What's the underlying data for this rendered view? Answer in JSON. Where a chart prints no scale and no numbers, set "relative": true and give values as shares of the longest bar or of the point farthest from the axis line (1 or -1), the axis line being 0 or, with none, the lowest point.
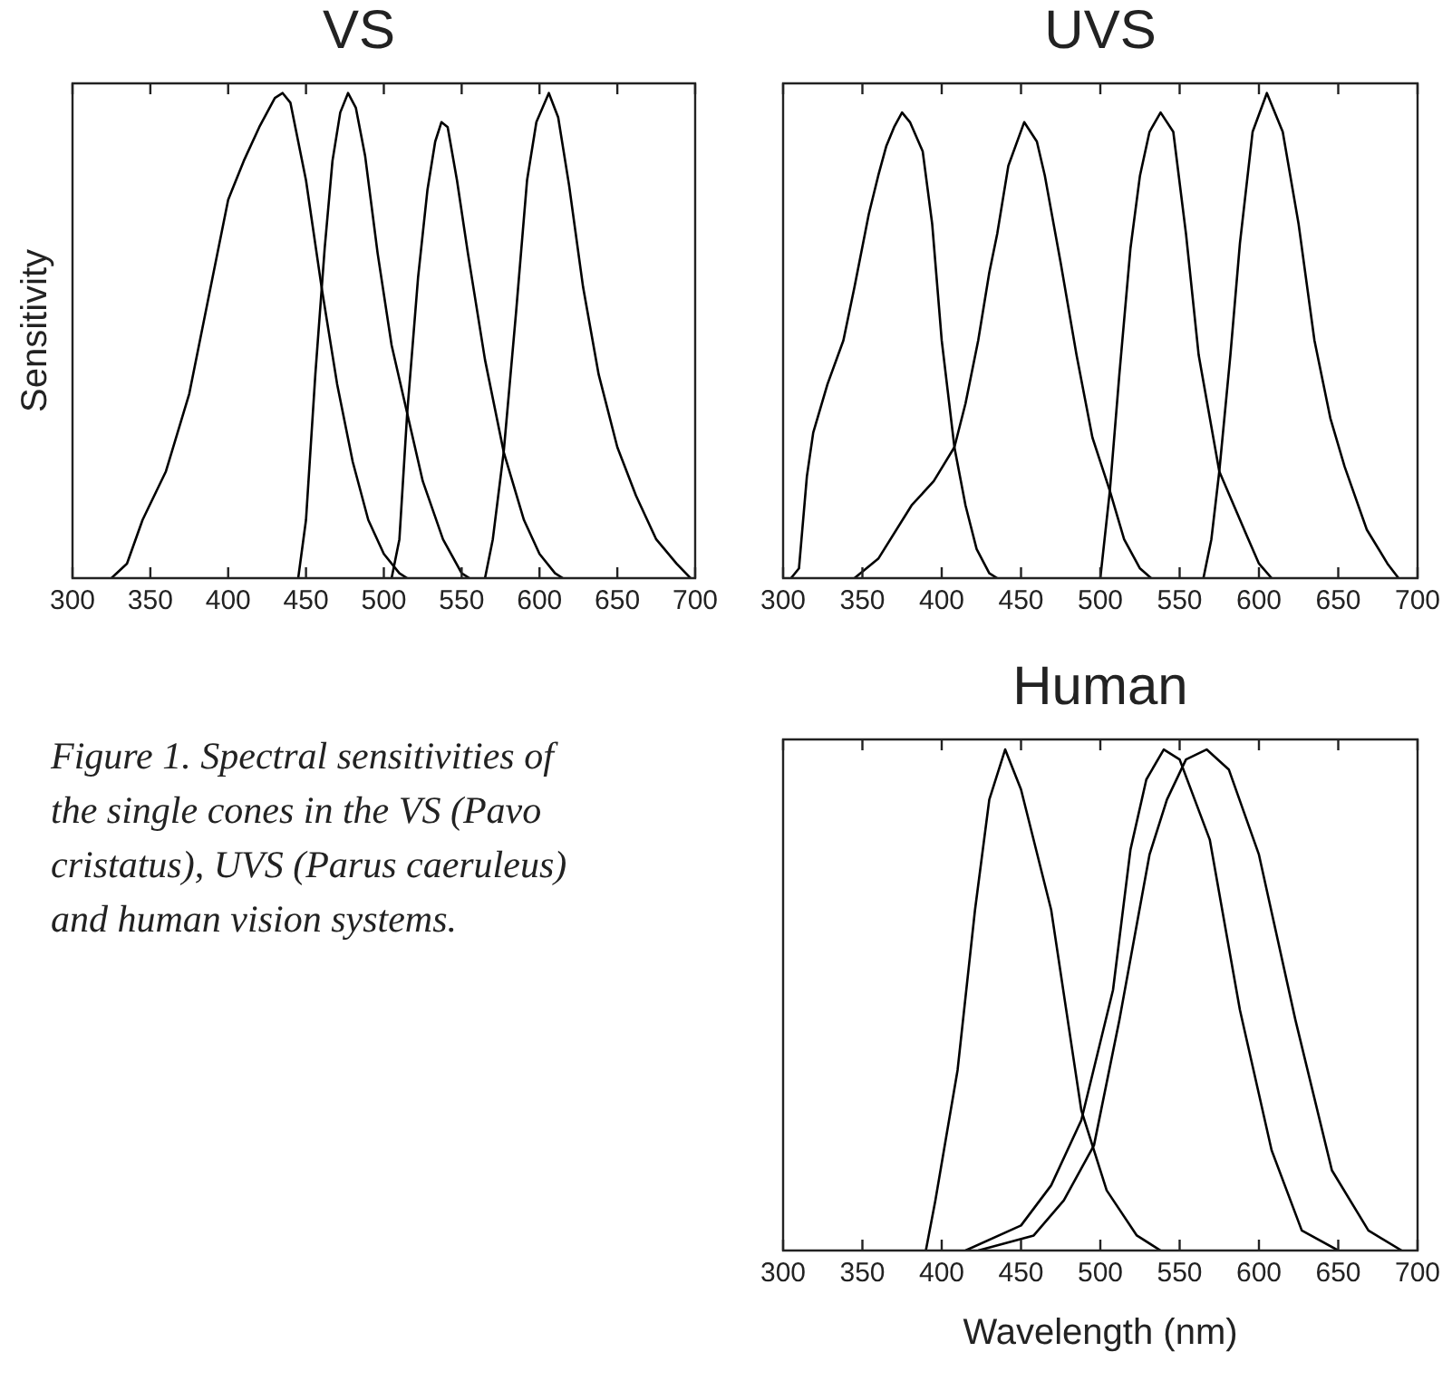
{
  "chart_data": [
    {
      "type": "line",
      "title": "VS",
      "ylabel": "Sensitivity",
      "relative": true,
      "xlim": [
        300,
        700
      ],
      "xticks": [
        300,
        350,
        400,
        450,
        500,
        550,
        600,
        650,
        700
      ],
      "tick_labels": "x",
      "marker": "none",
      "legend": false,
      "series": [
        {
          "color": "#000000",
          "x": [
            325,
            335,
            345,
            360,
            375,
            390,
            400,
            410,
            420,
            430,
            435,
            440,
            450,
            460,
            470,
            480,
            490,
            500,
            510,
            515
          ],
          "values": [
            0,
            0.03,
            0.12,
            0.22,
            0.38,
            0.62,
            0.78,
            0.86,
            0.93,
            0.99,
            1.0,
            0.98,
            0.82,
            0.6,
            0.4,
            0.24,
            0.12,
            0.05,
            0.01,
            0
          ]
        },
        {
          "color": "#000000",
          "x": [
            445,
            450,
            456,
            462,
            467,
            472,
            477,
            482,
            488,
            496,
            505,
            515,
            525,
            538,
            550,
            555
          ],
          "values": [
            0,
            0.12,
            0.42,
            0.68,
            0.86,
            0.96,
            1.0,
            0.97,
            0.87,
            0.67,
            0.48,
            0.34,
            0.2,
            0.08,
            0.01,
            0
          ]
        },
        {
          "color": "#000000",
          "x": [
            505,
            510,
            515,
            522,
            528,
            533,
            537,
            541,
            547,
            554,
            565,
            577,
            590,
            600,
            610,
            615
          ],
          "values": [
            0,
            0.08,
            0.34,
            0.62,
            0.8,
            0.9,
            0.94,
            0.93,
            0.82,
            0.67,
            0.45,
            0.26,
            0.12,
            0.05,
            0.01,
            0
          ]
        },
        {
          "color": "#000000",
          "x": [
            565,
            570,
            577,
            585,
            592,
            598,
            606,
            612,
            619,
            628,
            638,
            650,
            662,
            675,
            688,
            697
          ],
          "values": [
            0,
            0.08,
            0.26,
            0.55,
            0.82,
            0.94,
            1.0,
            0.95,
            0.81,
            0.6,
            0.42,
            0.27,
            0.17,
            0.08,
            0.03,
            0
          ]
        }
      ]
    },
    {
      "type": "line",
      "title": "UVS",
      "relative": true,
      "xlim": [
        300,
        700
      ],
      "xticks": [
        300,
        350,
        400,
        450,
        500,
        550,
        600,
        650,
        700
      ],
      "tick_labels": "x",
      "marker": "none",
      "legend": false,
      "series": [
        {
          "color": "#000000",
          "x": [
            305,
            310,
            315,
            319,
            328,
            338,
            345,
            354,
            360,
            365,
            370,
            375,
            380,
            388,
            394,
            400,
            408,
            415,
            422,
            430,
            435
          ],
          "values": [
            0,
            0.02,
            0.21,
            0.3,
            0.4,
            0.49,
            0.6,
            0.75,
            0.83,
            0.89,
            0.93,
            0.96,
            0.94,
            0.88,
            0.73,
            0.49,
            0.27,
            0.15,
            0.06,
            0.01,
            0
          ]
        },
        {
          "color": "#000000",
          "x": [
            345,
            360,
            381,
            395,
            408,
            415,
            423,
            430,
            435,
            442,
            452,
            460,
            465,
            475,
            485,
            495,
            506,
            515,
            525,
            532
          ],
          "values": [
            0,
            0.04,
            0.15,
            0.2,
            0.27,
            0.36,
            0.49,
            0.63,
            0.71,
            0.85,
            0.94,
            0.9,
            0.83,
            0.65,
            0.46,
            0.29,
            0.18,
            0.08,
            0.02,
            0
          ]
        },
        {
          "color": "#000000",
          "x": [
            500,
            506,
            512,
            519,
            525,
            531,
            538,
            546,
            554,
            562,
            575,
            592,
            600,
            608
          ],
          "values": [
            0,
            0.18,
            0.42,
            0.68,
            0.83,
            0.92,
            0.96,
            0.92,
            0.71,
            0.46,
            0.22,
            0.09,
            0.03,
            0
          ]
        },
        {
          "color": "#000000",
          "x": [
            565,
            570,
            575,
            582,
            588,
            596,
            605,
            615,
            625,
            635,
            645,
            654,
            668,
            681,
            688
          ],
          "values": [
            0,
            0.08,
            0.22,
            0.46,
            0.69,
            0.92,
            1.0,
            0.92,
            0.73,
            0.49,
            0.33,
            0.23,
            0.1,
            0.03,
            0
          ]
        }
      ]
    },
    {
      "type": "line",
      "title": "Human",
      "xlabel": "Wavelength (nm)",
      "relative": true,
      "xlim": [
        300,
        700
      ],
      "xticks": [
        300,
        350,
        400,
        450,
        500,
        550,
        600,
        650,
        700
      ],
      "tick_labels": "x",
      "marker": "none",
      "legend": false,
      "annotations": [
        "Figure 1. Spectral sensitivities of the single cones in the VS (Pavo cristatus), UVS (Parus caeruleus) and human vision systems."
      ],
      "series": [
        {
          "color": "#000000",
          "x": [
            390,
            396,
            410,
            421,
            430,
            440,
            450,
            469,
            488,
            504,
            523,
            538
          ],
          "values": [
            0,
            0.1,
            0.36,
            0.68,
            0.9,
            1.0,
            0.92,
            0.68,
            0.28,
            0.12,
            0.03,
            0
          ]
        },
        {
          "color": "#000000",
          "x": [
            415,
            450,
            469,
            488,
            508,
            519,
            529,
            540,
            550,
            569,
            588,
            608,
            627,
            650
          ],
          "values": [
            0,
            0.05,
            0.13,
            0.26,
            0.52,
            0.8,
            0.94,
            1.0,
            0.98,
            0.82,
            0.48,
            0.2,
            0.04,
            0
          ]
        },
        {
          "color": "#000000",
          "x": [
            423,
            458,
            477,
            496,
            512,
            531,
            542,
            554,
            567,
            581,
            600,
            623,
            646,
            669,
            690
          ],
          "values": [
            0,
            0.03,
            0.1,
            0.21,
            0.46,
            0.79,
            0.9,
            0.98,
            1.0,
            0.96,
            0.79,
            0.46,
            0.16,
            0.04,
            0
          ]
        }
      ]
    }
  ]
}
